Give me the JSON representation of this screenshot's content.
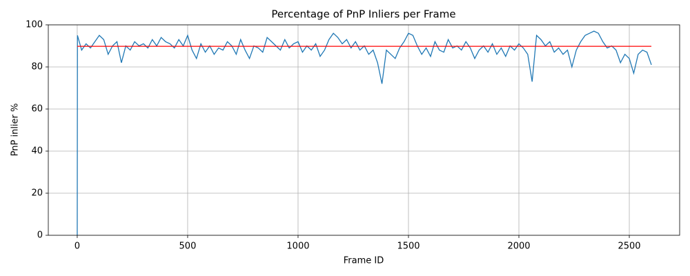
{
  "chart_data": {
    "type": "line",
    "title": "Percentage of PnP Inliers per Frame",
    "x_label": "Frame ID",
    "y_label": "PnP inlier %",
    "xlim": [
      -131,
      2728
    ],
    "ylim": [
      0,
      100
    ],
    "xticks": [
      0,
      500,
      1000,
      1500,
      2000,
      2500
    ],
    "yticks": [
      0,
      20,
      40,
      60,
      80,
      100
    ],
    "grid": true,
    "series": [
      {
        "color": "#1f77b4",
        "x": [
          0,
          1,
          20,
          40,
          60,
          80,
          100,
          120,
          140,
          160,
          180,
          200,
          220,
          240,
          260,
          280,
          300,
          320,
          340,
          360,
          380,
          400,
          420,
          440,
          460,
          480,
          500,
          520,
          540,
          560,
          580,
          600,
          620,
          640,
          660,
          680,
          700,
          720,
          740,
          760,
          780,
          800,
          820,
          840,
          860,
          880,
          900,
          920,
          940,
          960,
          980,
          1000,
          1020,
          1040,
          1060,
          1080,
          1100,
          1120,
          1140,
          1160,
          1180,
          1200,
          1220,
          1240,
          1260,
          1280,
          1300,
          1320,
          1340,
          1360,
          1380,
          1400,
          1420,
          1440,
          1460,
          1480,
          1500,
          1520,
          1540,
          1560,
          1580,
          1600,
          1620,
          1640,
          1660,
          1680,
          1700,
          1720,
          1740,
          1760,
          1780,
          1800,
          1820,
          1840,
          1860,
          1880,
          1900,
          1920,
          1940,
          1960,
          1980,
          2000,
          2020,
          2040,
          2060,
          2080,
          2100,
          2120,
          2140,
          2160,
          2180,
          2200,
          2220,
          2240,
          2260,
          2280,
          2300,
          2320,
          2340,
          2360,
          2380,
          2400,
          2420,
          2440,
          2460,
          2480,
          2500,
          2520,
          2540,
          2560,
          2580,
          2600
        ],
        "values": [
          0,
          95,
          88,
          91,
          89,
          92,
          95,
          93,
          86,
          90,
          92,
          82,
          90,
          88,
          92,
          90,
          91,
          89,
          93,
          90,
          94,
          92,
          91,
          89,
          93,
          90,
          95,
          88,
          84,
          91,
          87,
          90,
          86,
          89,
          88,
          92,
          90,
          86,
          93,
          88,
          84,
          90,
          89,
          87,
          94,
          92,
          90,
          88,
          93,
          89,
          91,
          92,
          87,
          90,
          88,
          91,
          85,
          88,
          93,
          96,
          94,
          91,
          93,
          89,
          92,
          88,
          90,
          86,
          88,
          82,
          72,
          88,
          86,
          84,
          89,
          92,
          96,
          95,
          90,
          86,
          89,
          85,
          92,
          88,
          87,
          93,
          89,
          90,
          88,
          92,
          89,
          84,
          88,
          90,
          87,
          91,
          86,
          89,
          85,
          90,
          88,
          91,
          89,
          86,
          73,
          95,
          93,
          90,
          92,
          87,
          89,
          86,
          88,
          80,
          88,
          92,
          95,
          96,
          97,
          96,
          92,
          89,
          90,
          88,
          82,
          86,
          84,
          77,
          86,
          88,
          87,
          81
        ]
      },
      {
        "color": "#ff0000",
        "x": [
          0,
          2600
        ],
        "values": [
          89.8,
          89.8
        ]
      }
    ]
  }
}
